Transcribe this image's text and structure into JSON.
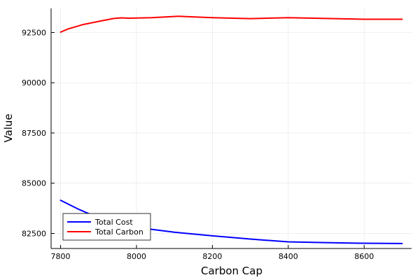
{
  "chart_data": {
    "type": "line",
    "title": "",
    "xlabel": "Carbon Cap",
    "ylabel": "Value",
    "xlim": [
      7775,
      8725
    ],
    "ylim": [
      81750,
      93700
    ],
    "xticks": [
      7800,
      8000,
      8200,
      8400,
      8600
    ],
    "yticks": [
      82500,
      85000,
      87500,
      90000,
      92500
    ],
    "grid": true,
    "legend_position": "bottom-left",
    "series": [
      {
        "name": "Total Cost",
        "color": "#0000ff",
        "points": [
          [
            7800,
            84150
          ],
          [
            7850,
            83680
          ],
          [
            7900,
            83280
          ],
          [
            7950,
            82980
          ],
          [
            8000,
            82800
          ],
          [
            8100,
            82560
          ],
          [
            8200,
            82380
          ],
          [
            8300,
            82220
          ],
          [
            8400,
            82080
          ],
          [
            8500,
            82040
          ],
          [
            8600,
            82010
          ],
          [
            8700,
            82000
          ]
        ]
      },
      {
        "name": "Total Carbon",
        "color": "#ff0000",
        "points": [
          [
            7800,
            92520
          ],
          [
            7820,
            92680
          ],
          [
            7860,
            92900
          ],
          [
            7900,
            93050
          ],
          [
            7940,
            93200
          ],
          [
            7960,
            93230
          ],
          [
            7980,
            93210
          ],
          [
            8040,
            93240
          ],
          [
            8110,
            93310
          ],
          [
            8200,
            93240
          ],
          [
            8300,
            93190
          ],
          [
            8400,
            93240
          ],
          [
            8500,
            93200
          ],
          [
            8600,
            93160
          ],
          [
            8700,
            93160
          ]
        ]
      }
    ]
  }
}
